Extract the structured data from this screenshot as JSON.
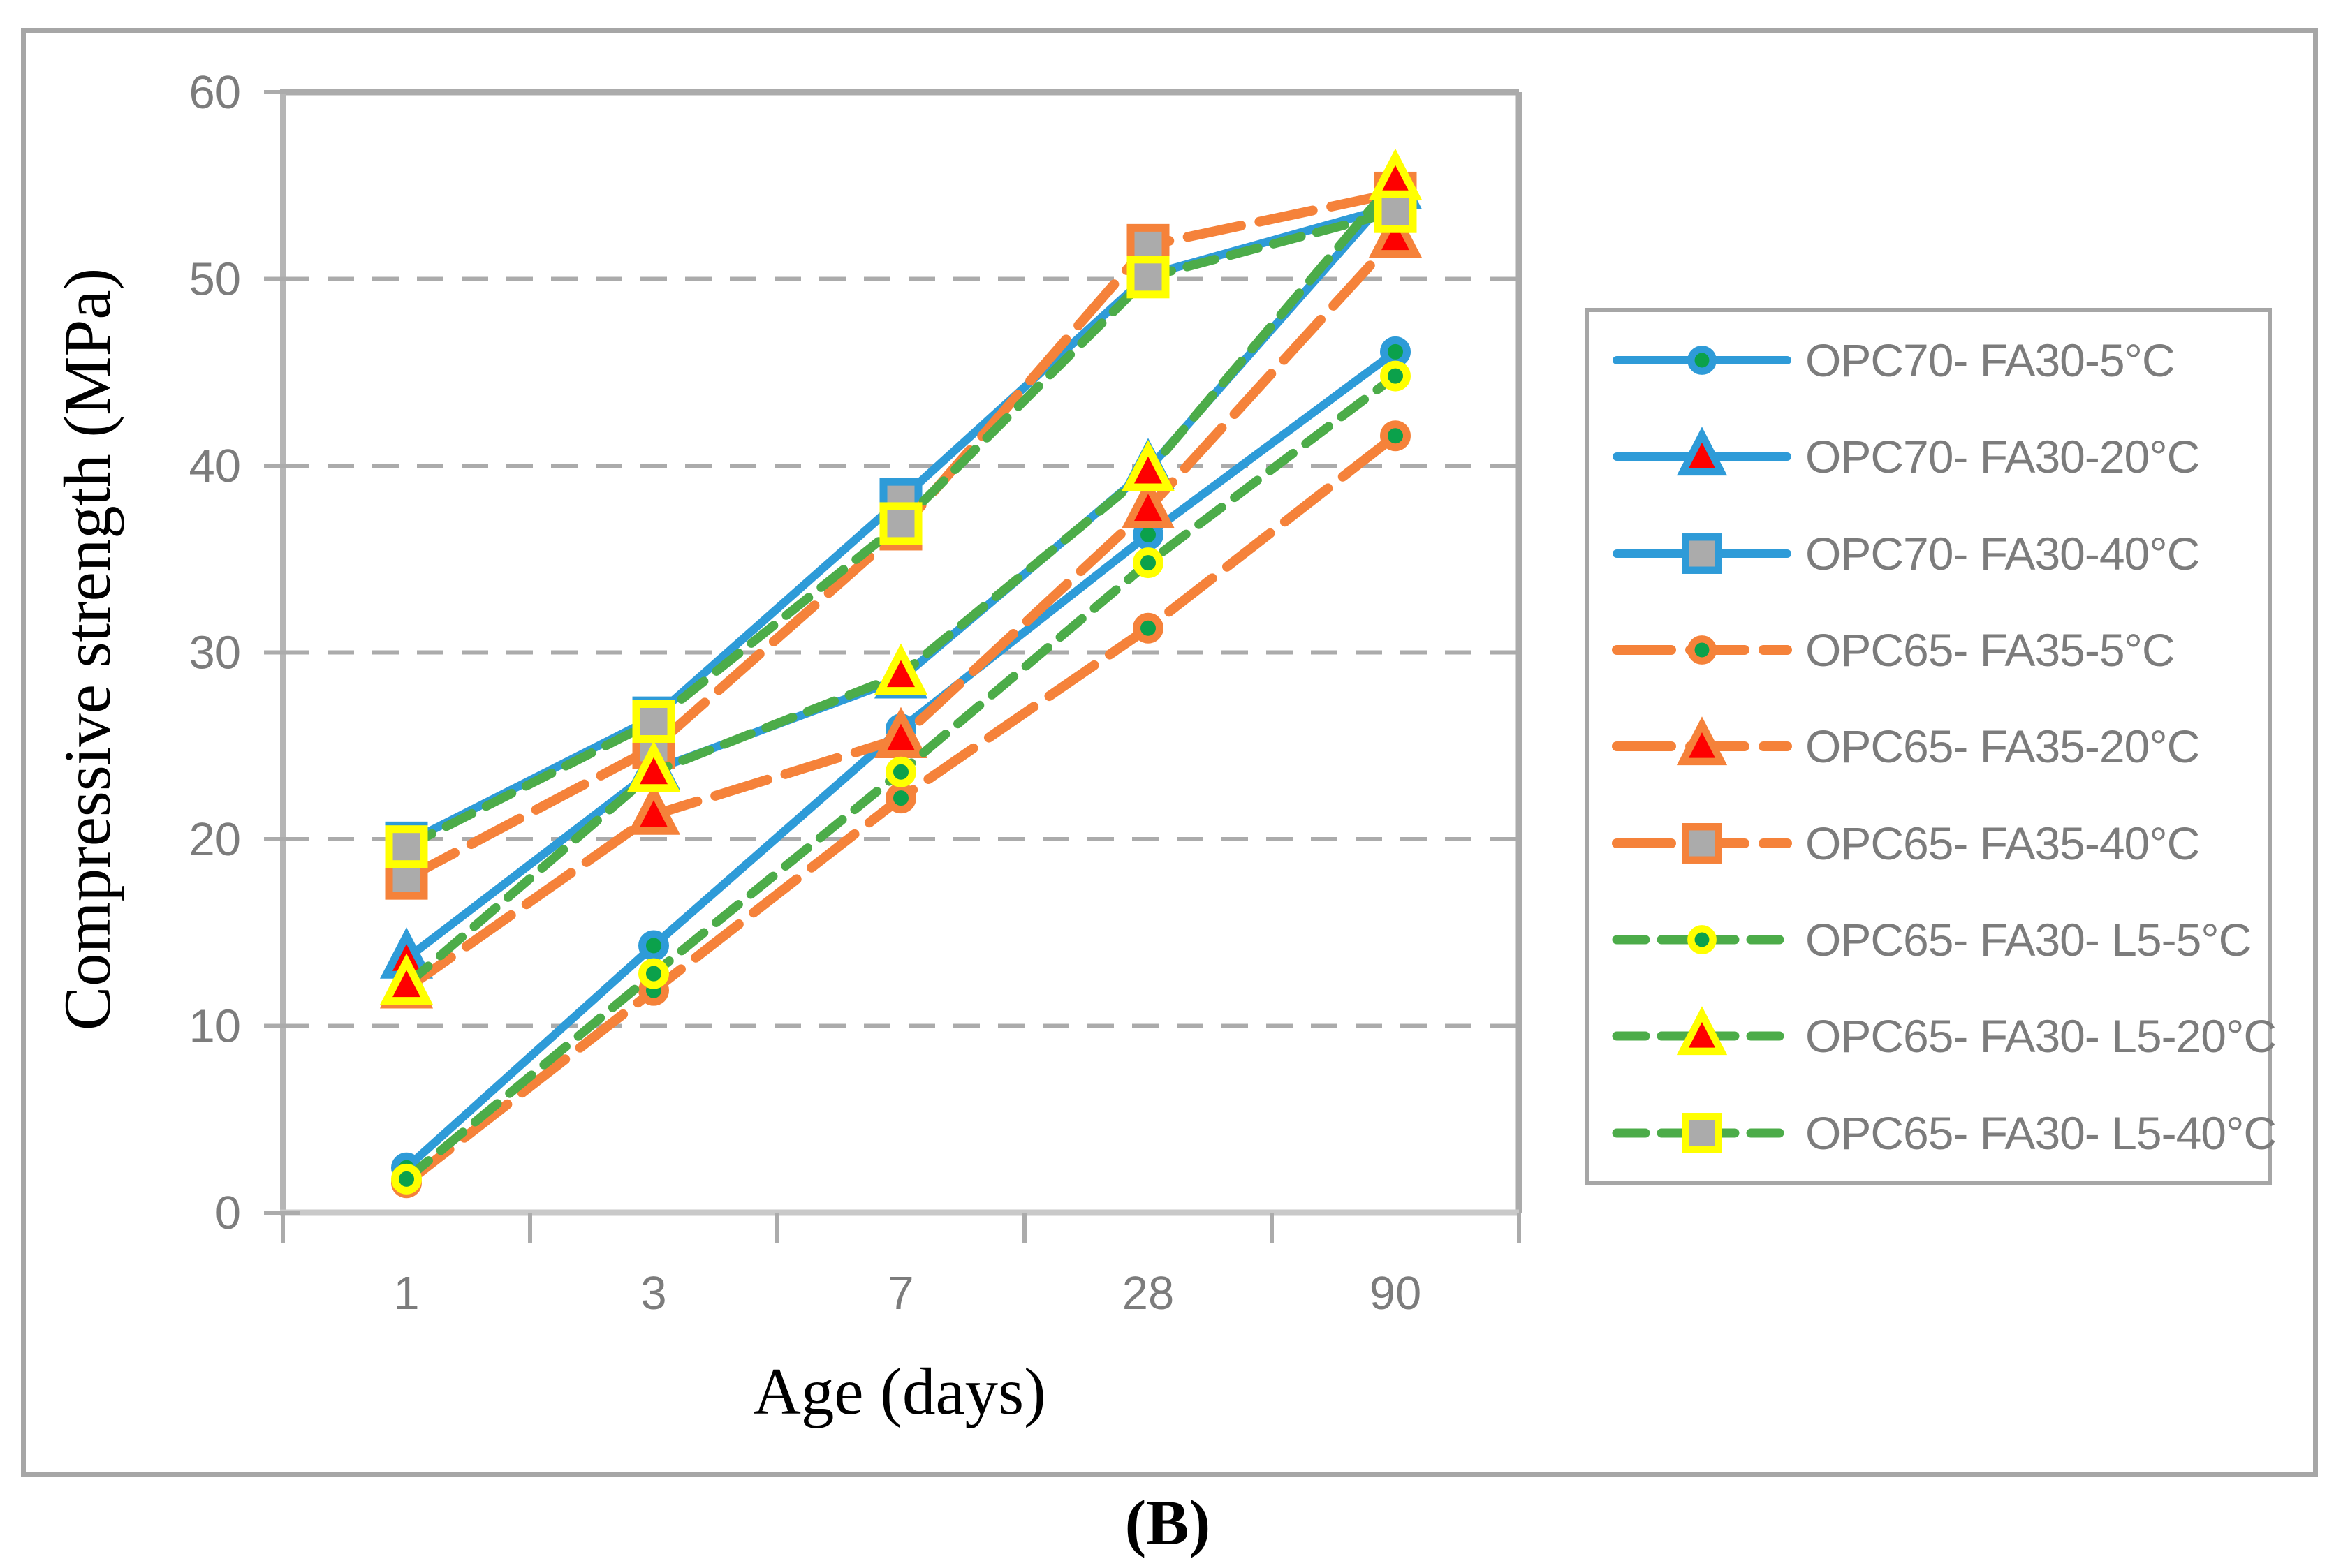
{
  "figure": {
    "caption": "(B)"
  },
  "chart_data": {
    "type": "line",
    "title": "",
    "xlabel": "Age (days)",
    "ylabel": "Compressive strength (MPa)",
    "categories": [
      "1",
      "3",
      "7",
      "28",
      "90"
    ],
    "y_ticks": [
      "0",
      "10",
      "20",
      "30",
      "40",
      "50",
      "60"
    ],
    "ylim": [
      0,
      60
    ],
    "grid": "horizontal dashed gridlines at 10..50",
    "grid_color": "#ABABAB",
    "axis_text_color": "#7C7C7C",
    "legend_position": "right",
    "series": [
      {
        "name": "OPC70- FA30-5°C",
        "values": [
          2.4,
          14.3,
          25.9,
          36.3,
          46.1
        ],
        "line_color": "#2E9BD8",
        "line_style": "solid",
        "marker": "circle",
        "marker_fill": "#0BA14B",
        "marker_edge": "#2E9BD8"
      },
      {
        "name": "OPC70- FA30-20°C",
        "values": [
          13.6,
          23.7,
          28.6,
          39.8,
          54.8
        ],
        "line_color": "#2E9BD8",
        "line_style": "solid",
        "marker": "triangle",
        "marker_fill": "#FE0000",
        "marker_edge": "#2E9BD8"
      },
      {
        "name": "OPC70- FA30-40°C",
        "values": [
          19.8,
          26.5,
          38.2,
          50.2,
          53.9
        ],
        "line_color": "#2E9BD8",
        "line_style": "solid",
        "marker": "square",
        "marker_fill": "#ABABAB",
        "marker_edge": "#2E9BD8"
      },
      {
        "name": "OPC65- FA35-5°C",
        "values": [
          1.6,
          11.9,
          22.2,
          31.3,
          41.6
        ],
        "line_color": "#F5823A",
        "line_style": "long-dash",
        "marker": "circle",
        "marker_fill": "#0BA14B",
        "marker_edge": "#F5823A"
      },
      {
        "name": "OPC65- FA35-20°C",
        "values": [
          12.0,
          21.3,
          25.4,
          37.7,
          52.2
        ],
        "line_color": "#F5823A",
        "line_style": "long-dash",
        "marker": "triangle",
        "marker_fill": "#FE0000",
        "marker_edge": "#F5823A"
      },
      {
        "name": "OPC65- FA35-40°C",
        "values": [
          17.9,
          24.9,
          36.6,
          51.8,
          54.6
        ],
        "line_color": "#F5823A",
        "line_style": "long-dash",
        "marker": "square",
        "marker_fill": "#ABABAB",
        "marker_edge": "#F5823A"
      },
      {
        "name": "OPC65- FA30- L5-5°C",
        "values": [
          1.8,
          12.8,
          23.6,
          34.8,
          44.8
        ],
        "line_color": "#4CAC49",
        "line_style": "short-dash",
        "marker": "circle",
        "marker_fill": "#0BA14B",
        "marker_edge": "#FFFF00"
      },
      {
        "name": "OPC65- FA30- L5-20°C",
        "values": [
          12.2,
          23.6,
          28.8,
          39.7,
          55.3
        ],
        "line_color": "#4CAC49",
        "line_style": "short-dash",
        "marker": "triangle",
        "marker_fill": "#FE0000",
        "marker_edge": "#FFFF00"
      },
      {
        "name": "OPC65- FA30- L5-40°C",
        "values": [
          19.6,
          26.3,
          36.9,
          50.1,
          53.6
        ],
        "line_color": "#4CAC49",
        "line_style": "short-dash",
        "marker": "square",
        "marker_fill": "#ABABAB",
        "marker_edge": "#FFFF00"
      }
    ]
  }
}
